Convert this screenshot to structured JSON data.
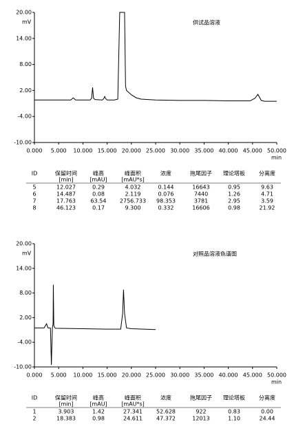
{
  "chart_data": [
    {
      "type": "line",
      "annotation": "供试品溶液",
      "ylabel": "mV",
      "xlabel": "min",
      "color": "#000000",
      "x": [
        0,
        5,
        7.5,
        8,
        8.5,
        11.5,
        11.8,
        12.0,
        12.2,
        12.5,
        14,
        14.3,
        14.5,
        14.7,
        15,
        16.5,
        17.2,
        17.4,
        17.6,
        18.6,
        18.8,
        19,
        20,
        21,
        22,
        25,
        30,
        35,
        40,
        44.5,
        45.5,
        46.1,
        46.8,
        47.5,
        50
      ],
      "values": [
        -0.2,
        -0.2,
        -0.2,
        0.3,
        -0.2,
        -0.2,
        0.2,
        2.7,
        0.2,
        -0.1,
        -0.2,
        0.1,
        0.6,
        0.1,
        -0.2,
        -0.2,
        0.0,
        10,
        20,
        20,
        3.0,
        2.0,
        1.0,
        0.3,
        0.0,
        -0.2,
        -0.3,
        -0.3,
        -0.4,
        -0.4,
        0.2,
        1.1,
        -0.3,
        -0.5,
        -0.5
      ],
      "xlim": [
        0,
        50
      ],
      "ylim": [
        -10,
        20
      ],
      "xticks": [
        {
          "value": 0,
          "label": "0.000"
        },
        {
          "value": 5,
          "label": "5.000"
        },
        {
          "value": 10,
          "label": "10.000"
        },
        {
          "value": 15,
          "label": "15.000"
        },
        {
          "value": 20,
          "label": "20.000"
        },
        {
          "value": 25,
          "label": "25.000"
        },
        {
          "value": 30,
          "label": "30.000"
        },
        {
          "value": 35,
          "label": "35.000"
        },
        {
          "value": 40,
          "label": "40.000"
        },
        {
          "value": 45,
          "label": "45.000"
        },
        {
          "value": 50,
          "label": "50.000"
        }
      ],
      "yticks": [
        {
          "value": -10,
          "label": "-10.00"
        },
        {
          "value": -4,
          "label": "-4.00"
        },
        {
          "value": 2,
          "label": "2.00"
        },
        {
          "value": 8,
          "label": "8.00"
        },
        {
          "value": 14,
          "label": "14.00"
        },
        {
          "value": 20,
          "label": "20.00"
        }
      ]
    },
    {
      "type": "line",
      "annotation": "对照品溶液色谱图",
      "ylabel": "mV",
      "xlabel": "min",
      "color": "#000000",
      "x": [
        0,
        2,
        2.5,
        2.8,
        3.3,
        3.5,
        3.7,
        3.85,
        3.9,
        4.0,
        4.3,
        10,
        15,
        17.8,
        18.2,
        18.38,
        18.6,
        19,
        20,
        25
      ],
      "values": [
        -0.5,
        -0.5,
        0.5,
        -0.5,
        -0.5,
        -9.5,
        -0.5,
        0.5,
        10.0,
        0.0,
        -0.6,
        -0.7,
        -0.8,
        -0.8,
        3,
        8.8,
        3,
        -0.5,
        -0.7,
        -0.9
      ],
      "xlim": [
        0,
        50
      ],
      "ylim": [
        -10,
        20
      ],
      "xticks": [
        {
          "value": 0,
          "label": "0.000"
        },
        {
          "value": 5,
          "label": "5.000"
        },
        {
          "value": 10,
          "label": "10.000"
        },
        {
          "value": 15,
          "label": "15.000"
        },
        {
          "value": 20,
          "label": "20.000"
        },
        {
          "value": 25,
          "label": "25.000"
        },
        {
          "value": 30,
          "label": "30.000"
        },
        {
          "value": 35,
          "label": "35.000"
        },
        {
          "value": 40,
          "label": "40.000"
        },
        {
          "value": 45,
          "label": "45.000"
        },
        {
          "value": 50,
          "label": "50.000"
        }
      ],
      "yticks": [
        {
          "value": -10,
          "label": "-10.00"
        },
        {
          "value": -4,
          "label": "-4.00"
        },
        {
          "value": 2,
          "label": "2.00"
        },
        {
          "value": 8,
          "label": "8.00"
        },
        {
          "value": 14,
          "label": "14.00"
        },
        {
          "value": 20,
          "label": "20.00"
        }
      ]
    }
  ],
  "tables": [
    {
      "header": [
        [
          "ID"
        ],
        [
          "保留时间",
          "[min]"
        ],
        [
          "峰高",
          "[mAU]"
        ],
        [
          "峰面积",
          "[mAU*s]"
        ],
        [
          "浓度"
        ],
        [
          "拖尾因子"
        ],
        [
          "理论塔板"
        ],
        [
          "分离度"
        ]
      ],
      "rows": [
        [
          "5",
          "12.027",
          "0.29",
          "4.032",
          "0.144",
          "16643",
          "0.95",
          "9.63"
        ],
        [
          "6",
          "14.487",
          "0.08",
          "2.119",
          "0.076",
          "7440",
          "1.26",
          "4.71"
        ],
        [
          "7",
          "17.763",
          "63.54",
          "2756.733",
          "98.353",
          "3781",
          "2.95",
          "3.59"
        ],
        [
          "8",
          "46.123",
          "0.17",
          "9.300",
          "0.332",
          "16606",
          "0.98",
          "21.92"
        ]
      ]
    },
    {
      "header": [
        [
          "ID"
        ],
        [
          "保留时间",
          "[min]"
        ],
        [
          "峰高",
          "[mAU]"
        ],
        [
          "峰面积",
          "[mAU*s]"
        ],
        [
          "浓度"
        ],
        [
          "拖尾因子"
        ],
        [
          "理论塔板"
        ],
        [
          "分离度"
        ]
      ],
      "rows": [
        [
          "1",
          "3.903",
          "1.42",
          "27.341",
          "52.628",
          "922",
          "0.83",
          "0.00"
        ],
        [
          "2",
          "18.383",
          "0.98",
          "24.611",
          "47.372",
          "12013",
          "1.10",
          "24.44"
        ]
      ]
    }
  ]
}
